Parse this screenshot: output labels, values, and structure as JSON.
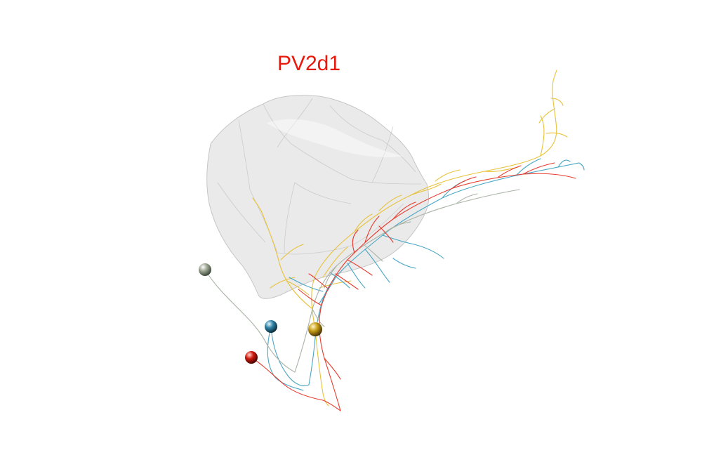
{
  "title": "PV2d1",
  "colors": {
    "title": "#e8190c",
    "mesh_fill": "#d9d9d9",
    "mesh_stroke": "#c6c6c6",
    "neuron_red": "#e83a2c",
    "neuron_yellow": "#e8c23a",
    "neuron_cyan": "#4aa6c4",
    "neuron_gray": "#a9b3a6"
  },
  "neurons": [
    {
      "id": "neuron-gray",
      "color_key": "neuron_gray",
      "soma_color": "#9ea893"
    },
    {
      "id": "neuron-cyan",
      "color_key": "neuron_cyan",
      "soma_color": "#2f84a8"
    },
    {
      "id": "neuron-yellow",
      "color_key": "neuron_yellow",
      "soma_color": "#c9a019"
    },
    {
      "id": "neuron-red",
      "color_key": "neuron_red",
      "soma_color": "#d11a0e"
    }
  ]
}
